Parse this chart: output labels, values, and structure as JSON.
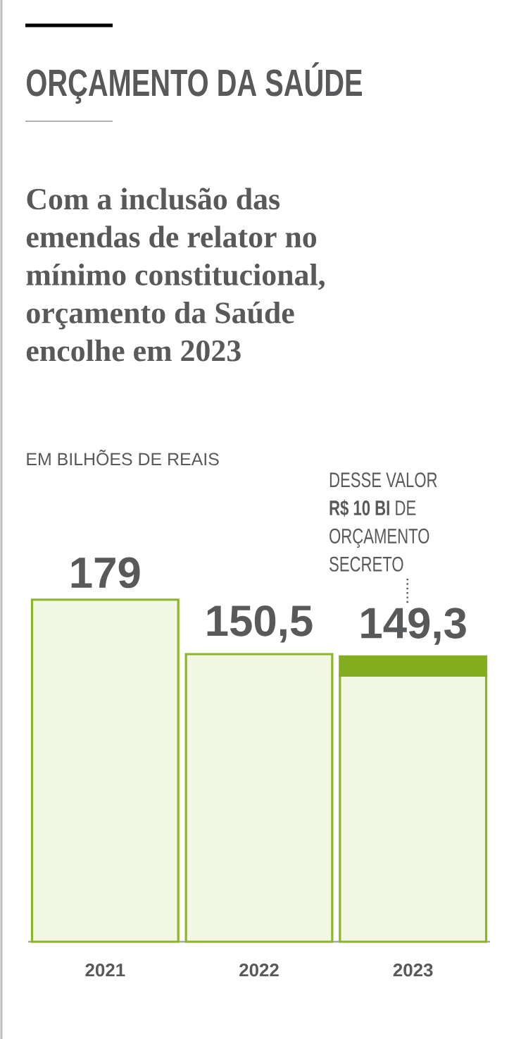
{
  "chart_data": {
    "type": "bar",
    "title": "ORÇAMENTO DA SAÚDE",
    "subtitle": "Com a inclusão das emendas de relator no mínimo constitucional, orçamento da Saúde encolhe em 2023",
    "categories": [
      "2021",
      "2022",
      "2023"
    ],
    "stacked": true,
    "tick_labels": "x",
    "series": [
      {
        "color": "#8db52a",
        "values": [
          179,
          150.5,
          139.3
        ],
        "value_labels": [
          "179",
          "150,5",
          null
        ]
      },
      {
        "color": "#84ad1f",
        "values": [
          null,
          null,
          10
        ]
      }
    ],
    "totals": [
      null,
      null,
      "149,3"
    ],
    "annotations": [
      "EM BILHÕES DE REAIS",
      "DESSE VALOR **R$ 10 BI** DE ORÇAMENTO SECRETO"
    ]
  }
}
